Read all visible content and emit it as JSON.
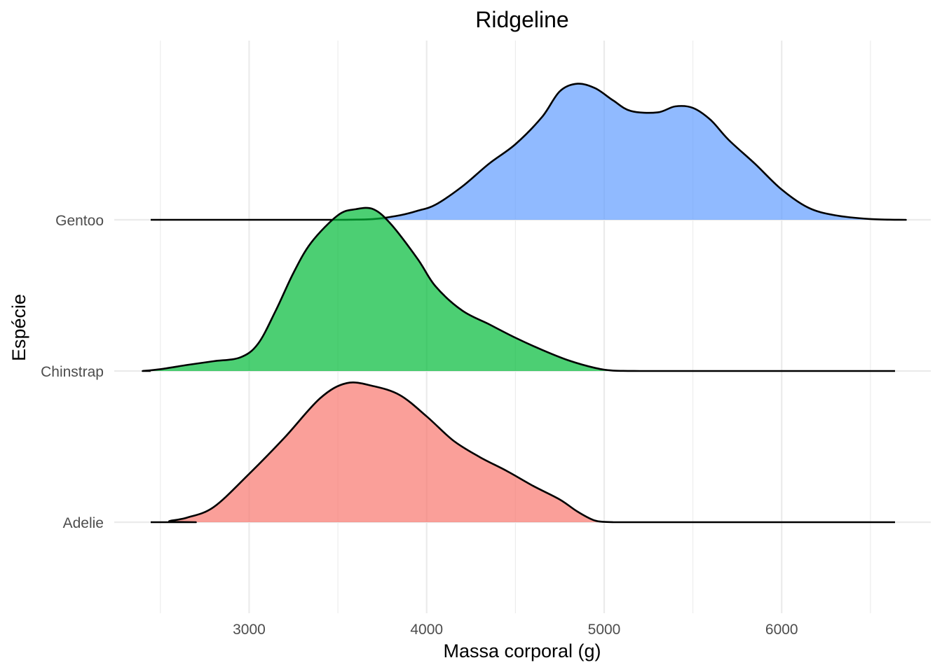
{
  "chart_data": {
    "type": "ridgeline",
    "title": "Ridgeline",
    "xlabel": "Massa corporal (g)",
    "ylabel": "Espécie",
    "xlim": [
      2240,
      6840
    ],
    "x_ticks": [
      3000,
      4000,
      5000,
      6000
    ],
    "x_minor_ticks": [
      2500,
      3500,
      4500,
      5500,
      6500
    ],
    "grid": true,
    "legend": "none",
    "scale": 1.8,
    "series": [
      {
        "name": "Adelie",
        "color": "#F8766D",
        "points": [
          [
            2700,
            0
          ],
          [
            2550,
            0.005
          ],
          [
            2650,
            0.03
          ],
          [
            2800,
            0.1
          ],
          [
            3000,
            0.32
          ],
          [
            3200,
            0.56
          ],
          [
            3400,
            0.82
          ],
          [
            3550,
            0.92
          ],
          [
            3700,
            0.9
          ],
          [
            3850,
            0.84
          ],
          [
            4000,
            0.7
          ],
          [
            4150,
            0.54
          ],
          [
            4300,
            0.43
          ],
          [
            4450,
            0.34
          ],
          [
            4600,
            0.24
          ],
          [
            4750,
            0.15
          ],
          [
            4850,
            0.07
          ],
          [
            4950,
            0.01
          ],
          [
            5050,
            0
          ]
        ]
      },
      {
        "name": "Chinstrap",
        "color": "#00BA38",
        "points": [
          [
            2400,
            0
          ],
          [
            2500,
            0.012
          ],
          [
            2650,
            0.04
          ],
          [
            2800,
            0.065
          ],
          [
            2950,
            0.09
          ],
          [
            3050,
            0.18
          ],
          [
            3150,
            0.4
          ],
          [
            3250,
            0.65
          ],
          [
            3350,
            0.85
          ],
          [
            3500,
            1.03
          ],
          [
            3600,
            1.07
          ],
          [
            3700,
            1.07
          ],
          [
            3800,
            0.97
          ],
          [
            3950,
            0.74
          ],
          [
            4050,
            0.56
          ],
          [
            4200,
            0.4
          ],
          [
            4350,
            0.31
          ],
          [
            4500,
            0.22
          ],
          [
            4650,
            0.14
          ],
          [
            4800,
            0.07
          ],
          [
            4950,
            0.02
          ],
          [
            5050,
            0.003
          ],
          [
            5200,
            0
          ]
        ]
      },
      {
        "name": "Gentoo",
        "color": "#619CFF",
        "points": [
          [
            3500,
            0
          ],
          [
            3700,
            0.005
          ],
          [
            3850,
            0.03
          ],
          [
            3950,
            0.06
          ],
          [
            4050,
            0.1
          ],
          [
            4200,
            0.22
          ],
          [
            4350,
            0.37
          ],
          [
            4500,
            0.5
          ],
          [
            4650,
            0.68
          ],
          [
            4750,
            0.85
          ],
          [
            4850,
            0.9
          ],
          [
            4950,
            0.87
          ],
          [
            5050,
            0.79
          ],
          [
            5150,
            0.72
          ],
          [
            5300,
            0.71
          ],
          [
            5400,
            0.75
          ],
          [
            5500,
            0.74
          ],
          [
            5600,
            0.66
          ],
          [
            5700,
            0.53
          ],
          [
            5850,
            0.37
          ],
          [
            6000,
            0.2
          ],
          [
            6150,
            0.08
          ],
          [
            6300,
            0.03
          ],
          [
            6500,
            0.005
          ],
          [
            6700,
            0
          ]
        ]
      }
    ]
  }
}
